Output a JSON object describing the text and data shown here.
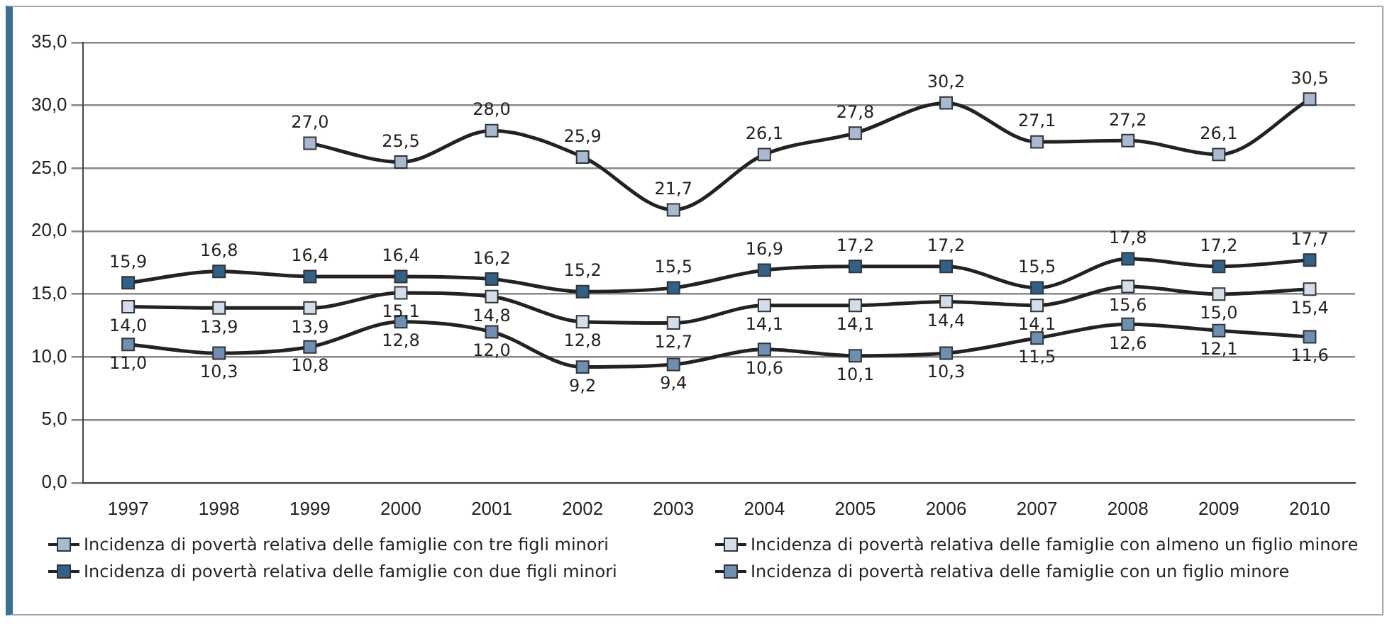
{
  "chart_data": {
    "type": "line",
    "categories": [
      "1997",
      "1998",
      "1999",
      "2000",
      "2001",
      "2002",
      "2003",
      "2004",
      "2005",
      "2006",
      "2007",
      "2008",
      "2009",
      "2010"
    ],
    "series": [
      {
        "name": "Incidenza di povertà relativa delle famiglie con tre figli minori",
        "color": "#a7bad2",
        "values": [
          null,
          null,
          27.0,
          25.5,
          28.0,
          25.9,
          21.7,
          26.1,
          27.8,
          30.2,
          27.1,
          27.2,
          26.1,
          30.5
        ],
        "value_labels": [
          null,
          null,
          "27,0",
          "25,5",
          "28,0",
          "25,9",
          "21,7",
          "26,1",
          "27,8",
          "30,2",
          "27,1",
          "27,2",
          "26,1",
          "30,5"
        ]
      },
      {
        "name": "Incidenza di povertà relativa delle famiglie con due figli minori",
        "color": "#2f6189",
        "values": [
          15.9,
          16.8,
          16.4,
          16.4,
          16.2,
          15.2,
          15.5,
          16.9,
          17.2,
          17.2,
          15.5,
          17.8,
          17.2,
          17.7
        ],
        "value_labels": [
          "15,9",
          "16,8",
          "16,4",
          "16,4",
          "16,2",
          "15,2",
          "15,5",
          "16,9",
          "17,2",
          "17,2",
          "15,5",
          "17,8",
          "17,2",
          "17,7"
        ]
      },
      {
        "name": "Incidenza di povertà relativa delle famiglie con almeno un figlio minore",
        "color": "#d3deea",
        "values": [
          14.0,
          13.9,
          13.9,
          15.1,
          14.8,
          12.8,
          12.7,
          14.1,
          14.1,
          14.4,
          14.1,
          15.6,
          15.0,
          15.4
        ],
        "value_labels": [
          "14,0",
          "13,9",
          "13,9",
          "15,1",
          "14,8",
          "12,8",
          "12,7",
          "14,1",
          "14,1",
          "14,4",
          "14,1",
          "15,6",
          "15,0",
          "15,4"
        ]
      },
      {
        "name": "Incidenza di povertà relativa delle famiglie con un figlio minore",
        "color": "#6d8fb1",
        "values": [
          11.0,
          10.3,
          10.8,
          12.8,
          12.0,
          9.2,
          9.4,
          10.6,
          10.1,
          10.3,
          11.5,
          12.6,
          12.1,
          11.6
        ],
        "value_labels": [
          "11,0",
          "10,3",
          "10,8",
          "12,8",
          "12,0",
          "9,2",
          "9,4",
          "10,6",
          "10,1",
          "10,3",
          "11,5",
          "12,6",
          "12,1",
          "11,6"
        ]
      }
    ],
    "ylim": [
      0,
      35
    ],
    "yticks": [
      {
        "value": 0,
        "label": "0,0"
      },
      {
        "value": 5,
        "label": "5,0"
      },
      {
        "value": 10,
        "label": "10,0"
      },
      {
        "value": 15,
        "label": "15,0"
      },
      {
        "value": 20,
        "label": "20,0"
      },
      {
        "value": 25,
        "label": "25,0"
      },
      {
        "value": 30,
        "label": "30,0"
      },
      {
        "value": 35,
        "label": "35,0"
      }
    ],
    "grid": "y",
    "legend": "bottom",
    "marker": "square",
    "line_style": "solid"
  }
}
